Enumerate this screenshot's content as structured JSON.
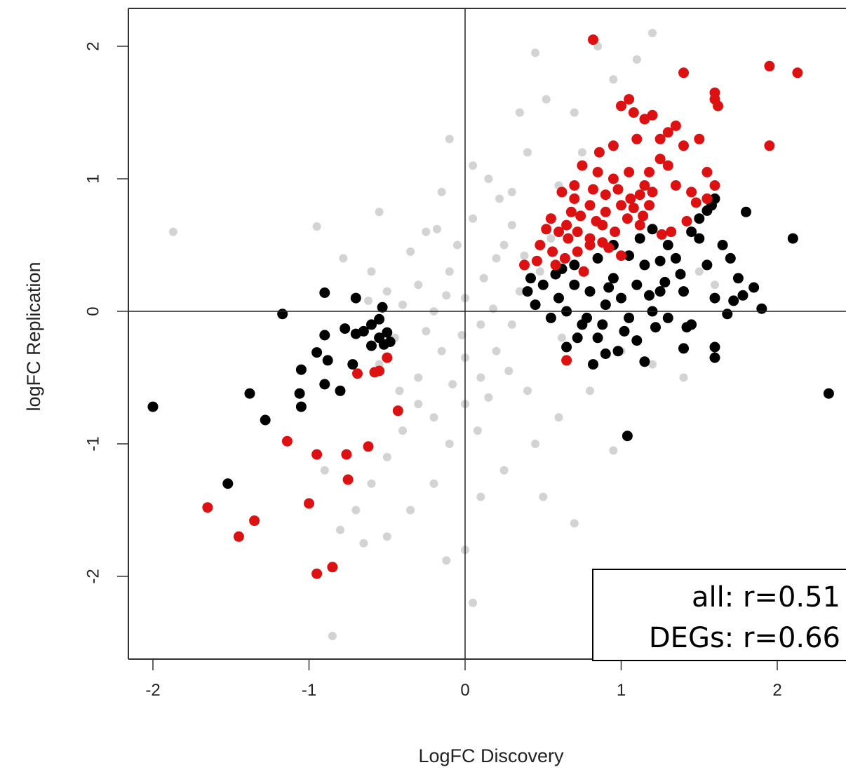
{
  "chart_data": {
    "type": "scatter",
    "title": "",
    "xlabel": "LogFC Discovery",
    "ylabel": "logFC Replication",
    "xlim": [
      -2.2,
      2.45
    ],
    "ylim": [
      -2.6,
      2.3
    ],
    "x_ticks": [
      -2,
      -1,
      0,
      1,
      2
    ],
    "y_ticks": [
      -2,
      -1,
      0,
      1,
      2
    ],
    "x_tick_labels": [
      "-2",
      "-1",
      "0",
      "1",
      "2"
    ],
    "y_tick_labels": [
      "-2",
      "-1",
      "0",
      "1",
      "2"
    ],
    "reference_lines": {
      "x": 0,
      "y": 0
    },
    "grid": false,
    "legend": {
      "placement": "bottom-right",
      "entries": [
        "all: r=0.51",
        "DEGs: r=0.66"
      ]
    },
    "colors": {
      "background": "#d3d3d3",
      "black": "#000000",
      "red": "#dd1111",
      "axis": "#333333"
    },
    "series": [
      {
        "color": "background",
        "points": [
          [
            -1.87,
            0.6
          ],
          [
            -0.95,
            0.64
          ],
          [
            -0.55,
            0.75
          ],
          [
            -0.78,
            0.4
          ],
          [
            -0.6,
            0.3
          ],
          [
            -0.5,
            0.15
          ],
          [
            -0.35,
            0.45
          ],
          [
            -0.25,
            0.6
          ],
          [
            -0.15,
            0.9
          ],
          [
            -0.1,
            1.3
          ],
          [
            0.05,
            1.1
          ],
          [
            0.15,
            1.0
          ],
          [
            0.3,
            0.9
          ],
          [
            0.25,
            0.5
          ],
          [
            0.45,
            1.95
          ],
          [
            0.52,
            1.6
          ],
          [
            0.7,
            1.5
          ],
          [
            0.75,
            1.2
          ],
          [
            0.6,
            0.95
          ],
          [
            0.85,
            2.0
          ],
          [
            0.95,
            1.75
          ],
          [
            1.1,
            1.9
          ],
          [
            1.2,
            2.1
          ],
          [
            0.35,
            1.5
          ],
          [
            0.4,
            1.2
          ],
          [
            -0.45,
            -0.2
          ],
          [
            -0.3,
            -0.5
          ],
          [
            -0.2,
            -0.8
          ],
          [
            -0.1,
            -1.0
          ],
          [
            0.0,
            -0.7
          ],
          [
            0.1,
            -0.5
          ],
          [
            0.2,
            -0.3
          ],
          [
            0.3,
            -0.1
          ],
          [
            -0.4,
            -0.9
          ],
          [
            -0.5,
            -1.1
          ],
          [
            -0.6,
            -1.3
          ],
          [
            -0.7,
            -1.5
          ],
          [
            -0.8,
            -1.65
          ],
          [
            -0.65,
            -1.75
          ],
          [
            -0.5,
            -1.7
          ],
          [
            -0.35,
            -1.5
          ],
          [
            -0.2,
            -1.3
          ],
          [
            -0.12,
            -1.88
          ],
          [
            0.0,
            -1.8
          ],
          [
            0.05,
            -2.2
          ],
          [
            -0.85,
            -2.45
          ],
          [
            -0.9,
            -1.2
          ],
          [
            0.1,
            -1.4
          ],
          [
            0.25,
            -1.2
          ],
          [
            0.45,
            -1.0
          ],
          [
            0.5,
            -1.4
          ],
          [
            0.6,
            -0.8
          ],
          [
            0.8,
            -0.6
          ],
          [
            1.0,
            -0.3
          ],
          [
            1.2,
            -0.4
          ],
          [
            1.4,
            -0.5
          ],
          [
            0.95,
            -1.05
          ],
          [
            0.7,
            -1.6
          ],
          [
            1.5,
            0.3
          ],
          [
            1.6,
            0.2
          ],
          [
            -0.3,
            0.2
          ],
          [
            -0.2,
            0.0
          ],
          [
            -0.1,
            0.3
          ],
          [
            0.0,
            0.1
          ],
          [
            0.1,
            -0.1
          ],
          [
            0.2,
            0.4
          ],
          [
            -0.15,
            -0.3
          ],
          [
            0.05,
            0.7
          ],
          [
            -0.05,
            0.5
          ],
          [
            0.3,
            0.65
          ],
          [
            0.15,
            -0.65
          ],
          [
            -0.25,
            -0.15
          ],
          [
            0.35,
            0.15
          ],
          [
            -0.4,
            0.05
          ],
          [
            0.0,
            -0.35
          ],
          [
            0.12,
            0.25
          ],
          [
            -0.08,
            -0.55
          ],
          [
            0.22,
            0.85
          ],
          [
            -0.55,
            -0.4
          ],
          [
            0.4,
            -0.6
          ],
          [
            0.55,
            0.55
          ],
          [
            -0.18,
            0.62
          ],
          [
            0.08,
            -0.9
          ],
          [
            -0.3,
            -0.7
          ],
          [
            0.28,
            -0.45
          ],
          [
            0.48,
            0.3
          ],
          [
            -0.12,
            0.12
          ],
          [
            0.18,
            0.02
          ],
          [
            -0.02,
            -0.18
          ],
          [
            0.38,
            0.42
          ],
          [
            -0.42,
            -0.6
          ],
          [
            0.62,
            -0.2
          ],
          [
            -0.62,
            0.08
          ]
        ]
      },
      {
        "color": "black",
        "points": [
          [
            -2.0,
            -0.72
          ],
          [
            -1.17,
            -0.02
          ],
          [
            -1.38,
            -0.62
          ],
          [
            -1.28,
            -0.82
          ],
          [
            -1.05,
            -0.44
          ],
          [
            -1.06,
            -0.62
          ],
          [
            -1.05,
            -0.72
          ],
          [
            -0.9,
            0.14
          ],
          [
            -0.9,
            -0.18
          ],
          [
            -0.95,
            -0.31
          ],
          [
            -0.88,
            -0.37
          ],
          [
            -0.9,
            -0.55
          ],
          [
            -0.8,
            -0.6
          ],
          [
            -0.77,
            -0.13
          ],
          [
            -0.72,
            -0.4
          ],
          [
            -0.7,
            0.1
          ],
          [
            -0.7,
            -0.17
          ],
          [
            -0.65,
            -0.15
          ],
          [
            -0.6,
            -0.1
          ],
          [
            -0.55,
            -0.06
          ],
          [
            -0.55,
            -0.2
          ],
          [
            -0.52,
            -0.25
          ],
          [
            -0.5,
            -0.16
          ],
          [
            -0.53,
            0.03
          ],
          [
            -0.48,
            -0.23
          ],
          [
            -0.6,
            -0.26
          ],
          [
            -1.52,
            -1.3
          ],
          [
            0.4,
            0.15
          ],
          [
            0.45,
            0.05
          ],
          [
            0.42,
            0.25
          ],
          [
            0.5,
            0.2
          ],
          [
            0.55,
            -0.05
          ],
          [
            0.6,
            0.1
          ],
          [
            0.65,
            0.0
          ],
          [
            0.7,
            0.2
          ],
          [
            0.75,
            -0.1
          ],
          [
            0.8,
            0.15
          ],
          [
            0.85,
            -0.2
          ],
          [
            0.9,
            0.05
          ],
          [
            0.95,
            0.25
          ],
          [
            1.0,
            0.1
          ],
          [
            1.05,
            -0.05
          ],
          [
            1.1,
            0.2
          ],
          [
            1.15,
            0.35
          ],
          [
            1.2,
            0.0
          ],
          [
            1.25,
            0.15
          ],
          [
            1.3,
            -0.05
          ],
          [
            1.35,
            0.4
          ],
          [
            1.4,
            0.15
          ],
          [
            1.45,
            -0.1
          ],
          [
            1.5,
            0.55
          ],
          [
            1.55,
            0.35
          ],
          [
            1.6,
            0.1
          ],
          [
            1.65,
            0.5
          ],
          [
            1.7,
            0.4
          ],
          [
            1.75,
            0.25
          ],
          [
            1.8,
            0.75
          ],
          [
            1.85,
            0.18
          ],
          [
            1.9,
            0.02
          ],
          [
            1.55,
            0.76
          ],
          [
            1.6,
            0.85
          ],
          [
            1.58,
            0.8
          ],
          [
            2.1,
            0.55
          ],
          [
            2.33,
            -0.62
          ],
          [
            1.04,
            -0.94
          ],
          [
            0.65,
            -0.27
          ],
          [
            0.72,
            -0.2
          ],
          [
            0.82,
            -0.4
          ],
          [
            0.9,
            -0.32
          ],
          [
            0.98,
            -0.3
          ],
          [
            1.1,
            -0.22
          ],
          [
            1.15,
            -0.38
          ],
          [
            1.02,
            -0.15
          ],
          [
            0.88,
            -0.1
          ],
          [
            0.78,
            -0.05
          ],
          [
            1.6,
            -0.27
          ],
          [
            1.6,
            -0.35
          ],
          [
            1.4,
            -0.28
          ],
          [
            1.42,
            -0.12
          ],
          [
            0.7,
            0.35
          ],
          [
            0.85,
            0.4
          ],
          [
            0.95,
            0.5
          ],
          [
            1.05,
            0.42
          ],
          [
            1.12,
            0.55
          ],
          [
            1.2,
            0.62
          ],
          [
            1.25,
            0.38
          ],
          [
            1.3,
            0.5
          ],
          [
            1.45,
            0.6
          ],
          [
            1.5,
            0.7
          ],
          [
            1.38,
            0.28
          ],
          [
            1.28,
            0.22
          ],
          [
            1.18,
            0.12
          ],
          [
            0.58,
            0.28
          ],
          [
            0.62,
            0.32
          ],
          [
            0.92,
            0.18
          ],
          [
            1.68,
            -0.02
          ],
          [
            1.72,
            0.08
          ],
          [
            1.78,
            0.12
          ],
          [
            1.22,
            -0.12
          ]
        ]
      },
      {
        "color": "red",
        "points": [
          [
            -0.43,
            -0.75
          ],
          [
            -0.5,
            -0.35
          ],
          [
            -0.55,
            -0.45
          ],
          [
            -0.58,
            -0.46
          ],
          [
            -0.69,
            -0.47
          ],
          [
            -1.14,
            -0.98
          ],
          [
            -0.95,
            -1.08
          ],
          [
            -0.76,
            -1.08
          ],
          [
            -0.75,
            -1.27
          ],
          [
            -0.62,
            -1.02
          ],
          [
            -1.65,
            -1.48
          ],
          [
            -1.45,
            -1.7
          ],
          [
            -1.35,
            -1.58
          ],
          [
            -1.0,
            -1.45
          ],
          [
            -0.95,
            -1.98
          ],
          [
            -0.85,
            -1.93
          ],
          [
            0.65,
            -0.37
          ],
          [
            0.82,
            2.05
          ],
          [
            1.4,
            1.8
          ],
          [
            1.95,
            1.85
          ],
          [
            2.13,
            1.8
          ],
          [
            1.95,
            1.25
          ],
          [
            1.6,
            1.6
          ],
          [
            1.62,
            1.55
          ],
          [
            1.6,
            1.65
          ],
          [
            1.0,
            1.55
          ],
          [
            1.05,
            1.6
          ],
          [
            1.08,
            1.5
          ],
          [
            1.15,
            1.45
          ],
          [
            1.2,
            1.48
          ],
          [
            0.95,
            1.25
          ],
          [
            1.1,
            1.3
          ],
          [
            1.25,
            1.3
          ],
          [
            1.3,
            1.35
          ],
          [
            1.35,
            1.4
          ],
          [
            1.4,
            1.25
          ],
          [
            1.5,
            1.3
          ],
          [
            1.25,
            1.15
          ],
          [
            1.3,
            1.1
          ],
          [
            0.75,
            1.1
          ],
          [
            0.85,
            1.05
          ],
          [
            0.95,
            1.0
          ],
          [
            1.05,
            1.05
          ],
          [
            1.15,
            0.95
          ],
          [
            1.2,
            0.9
          ],
          [
            1.35,
            0.95
          ],
          [
            1.45,
            0.9
          ],
          [
            1.55,
            0.85
          ],
          [
            1.6,
            0.95
          ],
          [
            1.48,
            0.82
          ],
          [
            0.62,
            0.9
          ],
          [
            0.7,
            0.85
          ],
          [
            0.8,
            0.8
          ],
          [
            0.9,
            0.75
          ],
          [
            1.0,
            0.8
          ],
          [
            1.08,
            0.78
          ],
          [
            1.14,
            0.72
          ],
          [
            0.55,
            0.7
          ],
          [
            0.65,
            0.65
          ],
          [
            0.72,
            0.6
          ],
          [
            0.8,
            0.55
          ],
          [
            0.88,
            0.65
          ],
          [
            0.96,
            0.6
          ],
          [
            1.04,
            0.7
          ],
          [
            1.12,
            0.65
          ],
          [
            0.48,
            0.5
          ],
          [
            0.56,
            0.45
          ],
          [
            0.64,
            0.4
          ],
          [
            0.72,
            0.45
          ],
          [
            0.8,
            0.5
          ],
          [
            0.88,
            0.52
          ],
          [
            0.38,
            0.35
          ],
          [
            0.46,
            0.38
          ],
          [
            0.58,
            0.35
          ],
          [
            0.66,
            0.55
          ],
          [
            0.74,
            0.72
          ],
          [
            0.82,
            0.92
          ],
          [
            0.9,
            0.88
          ],
          [
            0.98,
            0.92
          ],
          [
            1.06,
            0.85
          ],
          [
            0.6,
            0.6
          ],
          [
            0.68,
            0.75
          ],
          [
            0.52,
            0.62
          ],
          [
            1.12,
            0.88
          ],
          [
            1.18,
            0.8
          ],
          [
            1.26,
            0.58
          ],
          [
            1.32,
            0.6
          ],
          [
            1.42,
            0.68
          ],
          [
            0.92,
            0.48
          ],
          [
            0.76,
            0.3
          ],
          [
            1.0,
            0.42
          ],
          [
            0.84,
            0.68
          ],
          [
            0.7,
            0.95
          ],
          [
            0.86,
            1.2
          ],
          [
            1.18,
            1.05
          ],
          [
            1.55,
            1.05
          ]
        ]
      }
    ]
  }
}
